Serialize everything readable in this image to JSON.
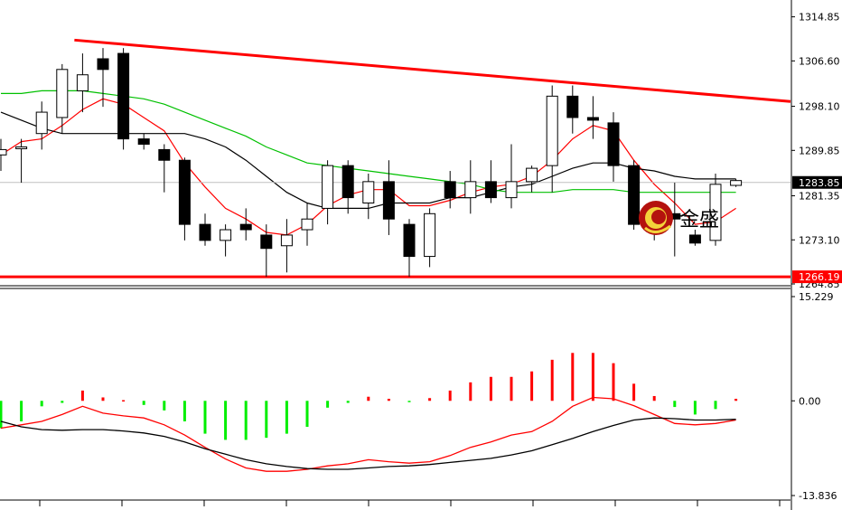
{
  "chart_data": [
    {
      "type": "candlestick",
      "panel": "price",
      "ylim": [
        1264.85,
        1318.0
      ],
      "y_tick_labels": [
        "1314.85",
        "1306.60",
        "1298.10",
        "1289.85",
        "1281.35",
        "1273.10",
        "1264.85"
      ],
      "y_ticks": [
        1314.85,
        1306.6,
        1298.1,
        1289.85,
        1281.35,
        1273.1,
        1264.85
      ],
      "current_price_label": "1283.85",
      "current_price": 1283.85,
      "support_label": "1266.19",
      "support_level": 1266.19,
      "grid": false,
      "candles": [
        {
          "o": 1289,
          "h": 1292,
          "l": 1286,
          "c": 1290
        },
        {
          "o": 1290.5,
          "h": 1292,
          "l": 1283.8,
          "c": 1290.5
        },
        {
          "o": 1293,
          "h": 1299,
          "l": 1290,
          "c": 1297
        },
        {
          "o": 1296,
          "h": 1306,
          "l": 1293,
          "c": 1305
        },
        {
          "o": 1301,
          "h": 1308,
          "l": 1297,
          "c": 1304
        },
        {
          "o": 1307,
          "h": 1309,
          "l": 1298,
          "c": 1305
        },
        {
          "o": 1308,
          "h": 1309,
          "l": 1290,
          "c": 1292
        },
        {
          "o": 1292,
          "h": 1293,
          "l": 1290,
          "c": 1291
        },
        {
          "o": 1290,
          "h": 1291,
          "l": 1282,
          "c": 1288
        },
        {
          "o": 1288,
          "h": 1288.5,
          "l": 1273,
          "c": 1276
        },
        {
          "o": 1276,
          "h": 1278,
          "l": 1272,
          "c": 1273
        },
        {
          "o": 1273,
          "h": 1276,
          "l": 1270,
          "c": 1275
        },
        {
          "o": 1276,
          "h": 1279,
          "l": 1273,
          "c": 1275
        },
        {
          "o": 1274,
          "h": 1276,
          "l": 1266.2,
          "c": 1271.5
        },
        {
          "o": 1272,
          "h": 1277,
          "l": 1267,
          "c": 1274
        },
        {
          "o": 1275,
          "h": 1280,
          "l": 1272,
          "c": 1277
        },
        {
          "o": 1279,
          "h": 1288,
          "l": 1276,
          "c": 1287
        },
        {
          "o": 1287,
          "h": 1288,
          "l": 1278,
          "c": 1281
        },
        {
          "o": 1280,
          "h": 1285.5,
          "l": 1277,
          "c": 1284
        },
        {
          "o": 1284,
          "h": 1288,
          "l": 1274,
          "c": 1277
        },
        {
          "o": 1276,
          "h": 1277,
          "l": 1266.2,
          "c": 1270
        },
        {
          "o": 1270,
          "h": 1279,
          "l": 1268,
          "c": 1278
        },
        {
          "o": 1284,
          "h": 1286,
          "l": 1279,
          "c": 1281
        },
        {
          "o": 1281,
          "h": 1288,
          "l": 1278,
          "c": 1284
        },
        {
          "o": 1284,
          "h": 1288,
          "l": 1280,
          "c": 1281
        },
        {
          "o": 1281,
          "h": 1291,
          "l": 1279,
          "c": 1284
        },
        {
          "o": 1284,
          "h": 1287,
          "l": 1282,
          "c": 1286.5
        },
        {
          "o": 1287,
          "h": 1302,
          "l": 1282,
          "c": 1300
        },
        {
          "o": 1300,
          "h": 1302,
          "l": 1293,
          "c": 1296
        },
        {
          "o": 1296,
          "h": 1300,
          "l": 1292,
          "c": 1295.5
        },
        {
          "o": 1295,
          "h": 1297,
          "l": 1284,
          "c": 1287
        },
        {
          "o": 1287,
          "h": 1288,
          "l": 1275,
          "c": 1276
        },
        {
          "o": 1278,
          "h": 1280,
          "l": 1273,
          "c": 1278
        },
        {
          "o": 1278,
          "h": 1283.8,
          "l": 1270,
          "c": 1277
        },
        {
          "o": 1274,
          "h": 1275,
          "l": 1272,
          "c": 1272.5
        },
        {
          "o": 1273,
          "h": 1285.5,
          "l": 1272,
          "c": 1283.5
        },
        {
          "o": 1283.3,
          "h": 1284.5,
          "l": 1283,
          "c": 1284.2
        }
      ],
      "trendline": {
        "from": {
          "index": 3.6,
          "value": 1310.5
        },
        "to": {
          "index": 38,
          "value": 1299
        }
      },
      "moving_averages": [
        {
          "color": "#ff0000",
          "values": [
            1289,
            1291.5,
            1292,
            1294.5,
            1297.5,
            1299.5,
            1298.5,
            1296,
            1293.5,
            1287.5,
            1283,
            1279,
            1277,
            1274.5,
            1274,
            1276,
            1279.5,
            1281.5,
            1282.5,
            1282.5,
            1279.5,
            1279.5,
            1280.5,
            1282,
            1283,
            1283.5,
            1285,
            1288,
            1292,
            1294.5,
            1293.5,
            1288,
            1283.5,
            1280,
            1276,
            1276.5,
            1279
          ]
        },
        {
          "color": "#000000",
          "values": [
            1297,
            1295.5,
            1294,
            1293,
            1293,
            1293,
            1293,
            1293,
            1293,
            1293,
            1292,
            1290.5,
            1288,
            1285,
            1282,
            1280,
            1279,
            1279,
            1279,
            1280,
            1280,
            1280,
            1281,
            1281,
            1282,
            1283,
            1283.5,
            1285,
            1286.5,
            1287.5,
            1287.5,
            1286.5,
            1286,
            1285,
            1284.5,
            1284.5,
            1284.5
          ]
        },
        {
          "color": "#00c000",
          "values": [
            1300.5,
            1300.5,
            1301,
            1301,
            1301,
            1300.5,
            1300,
            1299.5,
            1298.5,
            1297,
            1295.5,
            1294,
            1292.5,
            1290.5,
            1289,
            1287.5,
            1287,
            1286.5,
            1286,
            1285.5,
            1285,
            1284.5,
            1284,
            1283.5,
            1282.5,
            1282,
            1282,
            1282,
            1282.5,
            1282.5,
            1282.5,
            1282,
            1282,
            1282,
            1282,
            1282,
            1282
          ]
        }
      ]
    },
    {
      "type": "bar",
      "panel": "indicator",
      "ylim": [
        -13.836,
        15.229
      ],
      "y_tick_labels": [
        "15.229",
        "0.00",
        "-13.836"
      ],
      "y_ticks": [
        15.229,
        0,
        -13.836
      ],
      "grid": false,
      "values": [
        -4.0,
        -3.0,
        -0.8,
        -0.3,
        1.5,
        0.5,
        0.1,
        -0.6,
        -1.4,
        -3.0,
        -4.8,
        -5.7,
        -5.7,
        -5.4,
        -4.8,
        -3.8,
        -1.0,
        -0.3,
        0.6,
        0.3,
        -0.2,
        0.4,
        1.5,
        2.7,
        3.5,
        3.5,
        4.3,
        6.0,
        7.0,
        7.0,
        5.5,
        2.5,
        0.7,
        -0.9,
        -2.0,
        -1.2,
        0.3
      ],
      "series": [
        {
          "color": "#ff0000",
          "values": [
            -4.0,
            -3.5,
            -3.0,
            -2.0,
            -0.8,
            -1.8,
            -2.2,
            -2.5,
            -3.5,
            -5.0,
            -6.8,
            -8.5,
            -9.8,
            -10.3,
            -10.3,
            -10.0,
            -9.5,
            -9.2,
            -8.6,
            -8.9,
            -9.1,
            -8.9,
            -8.0,
            -6.8,
            -6.0,
            -5.0,
            -4.5,
            -3.0,
            -0.8,
            0.5,
            0.3,
            -0.7,
            -2.0,
            -3.3,
            -3.5,
            -3.3,
            -2.8
          ]
        },
        {
          "color": "#000000",
          "values": [
            -3.0,
            -3.8,
            -4.2,
            -4.3,
            -4.2,
            -4.2,
            -4.4,
            -4.7,
            -5.2,
            -6.0,
            -7.0,
            -7.8,
            -8.6,
            -9.2,
            -9.6,
            -9.9,
            -10.0,
            -10.0,
            -9.8,
            -9.6,
            -9.5,
            -9.3,
            -9.0,
            -8.7,
            -8.4,
            -7.9,
            -7.3,
            -6.4,
            -5.5,
            -4.5,
            -3.6,
            -2.8,
            -2.5,
            -2.6,
            -2.8,
            -2.8,
            -2.7
          ]
        }
      ]
    }
  ],
  "logo": {
    "text": "金盛",
    "icon": "jinsheng-logo-icon"
  }
}
